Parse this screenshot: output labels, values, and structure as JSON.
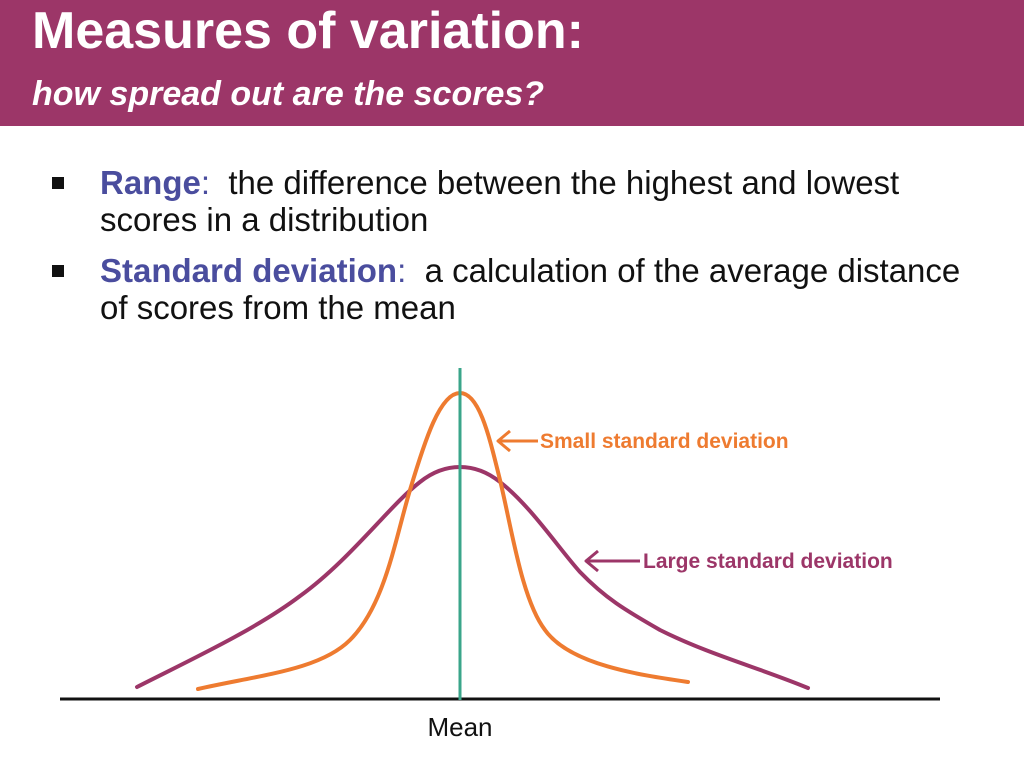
{
  "title": "Measures of variation:",
  "subtitle": "how spread out are the scores?",
  "bullets": [
    {
      "term": "Range",
      "colon": ":",
      "text": "  the difference between the highest and lowest scores in a distribution"
    },
    {
      "term": "Standard deviation",
      "colon": ":",
      "text": "  a calculation of the average distance of scores from the mean"
    }
  ],
  "figure": {
    "small_sd_label": "Small standard deviation",
    "large_sd_label": "Large standard deviation",
    "mean_label": "Mean"
  },
  "colors": {
    "title_bar": "#9c3668",
    "term": "#4a4d9e",
    "small_sd_curve": "#ee7b30",
    "large_sd_curve": "#9c3668",
    "mean_line": "#3aa58a",
    "baseline": "#111111"
  }
}
